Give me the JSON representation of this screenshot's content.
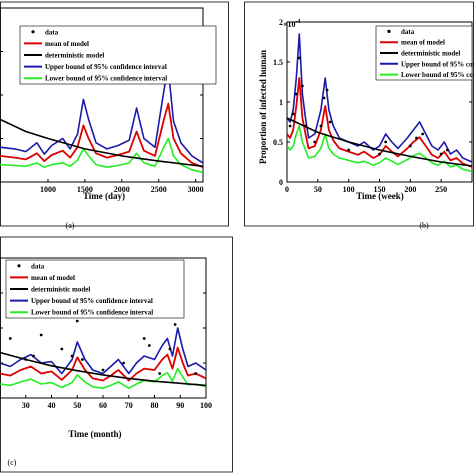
{
  "colors": {
    "data": "#000000",
    "mean": "#dd0000",
    "deterministic": "#000000",
    "upper": "#1a1aaa",
    "lower": "#22ee22"
  },
  "legend_labels": [
    "data",
    "mean of model",
    "deterministic model",
    "Upper bound of 95% confidence interval",
    "Lower bound of 95% confidence interval"
  ],
  "chart_data": [
    {
      "type": "line",
      "panel_label": "(a)",
      "xlabel": "Time (day)",
      "ylabel": "",
      "xlim": [
        350,
        3100
      ],
      "ylim": [
        0,
        2
      ],
      "xticks": [
        1000,
        1500,
        2000,
        2500,
        3000
      ],
      "series": [
        {
          "name": "deterministic model",
          "x": [
            350,
            700,
            1000,
            1500,
            2000,
            2500,
            3000,
            3100
          ],
          "y": [
            0.72,
            0.58,
            0.5,
            0.38,
            0.3,
            0.24,
            0.19,
            0.18
          ]
        },
        {
          "name": "Upper bound of 95% confidence interval",
          "x": [
            350,
            550,
            700,
            850,
            950,
            1050,
            1200,
            1300,
            1400,
            1480,
            1550,
            1650,
            1800,
            1950,
            2100,
            2200,
            2300,
            2450,
            2580,
            2630,
            2700,
            2800,
            2950,
            3100
          ],
          "y": [
            0.4,
            0.38,
            0.35,
            0.45,
            0.32,
            0.42,
            0.5,
            0.38,
            0.55,
            0.95,
            0.72,
            0.45,
            0.38,
            0.42,
            0.48,
            0.85,
            0.5,
            0.4,
            1.1,
            1.3,
            0.7,
            0.45,
            0.3,
            0.22
          ]
        },
        {
          "name": "mean of model",
          "x": [
            350,
            550,
            700,
            850,
            950,
            1050,
            1200,
            1300,
            1400,
            1480,
            1550,
            1650,
            1800,
            1950,
            2100,
            2200,
            2300,
            2450,
            2580,
            2630,
            2700,
            2800,
            2950,
            3100
          ],
          "y": [
            0.3,
            0.28,
            0.26,
            0.33,
            0.24,
            0.31,
            0.36,
            0.28,
            0.4,
            0.65,
            0.5,
            0.33,
            0.28,
            0.31,
            0.35,
            0.58,
            0.36,
            0.3,
            0.75,
            0.9,
            0.5,
            0.33,
            0.22,
            0.17
          ]
        },
        {
          "name": "Lower bound of 95% confidence interval",
          "x": [
            350,
            550,
            700,
            850,
            950,
            1050,
            1200,
            1300,
            1400,
            1480,
            1550,
            1650,
            1800,
            1950,
            2100,
            2200,
            2300,
            2450,
            2580,
            2630,
            2700,
            2800,
            2950,
            3100
          ],
          "y": [
            0.2,
            0.19,
            0.18,
            0.22,
            0.17,
            0.2,
            0.22,
            0.18,
            0.25,
            0.38,
            0.3,
            0.2,
            0.17,
            0.19,
            0.22,
            0.33,
            0.22,
            0.18,
            0.42,
            0.5,
            0.3,
            0.2,
            0.14,
            0.11
          ]
        }
      ]
    },
    {
      "type": "line",
      "panel_label": "(b)",
      "xlabel": "Time (week)",
      "ylabel": "Proportion of infected human",
      "exponent_label": "×10",
      "exponent_power": "-4",
      "xlim": [
        0,
        300
      ],
      "ylim": [
        0,
        2
      ],
      "xticks": [
        0,
        50,
        100,
        150,
        200,
        250
      ],
      "yticks": [
        0,
        0.5,
        1,
        1.5,
        2
      ],
      "yticklabels": [
        "0",
        "0.5",
        "1",
        "1.5",
        "2"
      ],
      "series": [
        {
          "name": "deterministic model",
          "x": [
            0,
            50,
            100,
            150,
            200,
            250,
            300
          ],
          "y": [
            0.8,
            0.62,
            0.5,
            0.4,
            0.32,
            0.25,
            0.2
          ]
        },
        {
          "name": "Upper bound of 95% confidence interval",
          "x": [
            0,
            5,
            10,
            15,
            20,
            25,
            30,
            35,
            45,
            55,
            62,
            68,
            75,
            85,
            100,
            115,
            125,
            140,
            150,
            160,
            170,
            180,
            195,
            205,
            215,
            225,
            235,
            245,
            255,
            265,
            275,
            285,
            300
          ],
          "y": [
            0.8,
            0.75,
            0.9,
            1.3,
            1.85,
            1.1,
            0.8,
            0.55,
            0.6,
            0.9,
            1.3,
            0.9,
            0.7,
            0.55,
            0.5,
            0.45,
            0.5,
            0.4,
            0.45,
            0.6,
            0.5,
            0.42,
            0.55,
            0.65,
            0.75,
            0.6,
            0.45,
            0.4,
            0.5,
            0.35,
            0.4,
            0.3,
            0.25
          ]
        },
        {
          "name": "mean of model",
          "x": [
            0,
            5,
            10,
            15,
            20,
            25,
            30,
            35,
            45,
            55,
            62,
            68,
            75,
            85,
            100,
            115,
            125,
            140,
            150,
            160,
            170,
            180,
            195,
            205,
            215,
            225,
            235,
            245,
            255,
            265,
            275,
            285,
            300
          ],
          "y": [
            0.6,
            0.55,
            0.65,
            0.95,
            1.3,
            0.8,
            0.6,
            0.42,
            0.45,
            0.65,
            0.95,
            0.65,
            0.52,
            0.42,
            0.38,
            0.34,
            0.38,
            0.3,
            0.34,
            0.45,
            0.38,
            0.32,
            0.42,
            0.5,
            0.56,
            0.45,
            0.34,
            0.3,
            0.38,
            0.27,
            0.3,
            0.23,
            0.19
          ]
        },
        {
          "name": "Lower bound of 95% confidence interval",
          "x": [
            0,
            5,
            10,
            15,
            20,
            25,
            30,
            35,
            45,
            55,
            62,
            68,
            75,
            85,
            100,
            115,
            125,
            140,
            150,
            160,
            170,
            180,
            195,
            205,
            215,
            225,
            235,
            245,
            255,
            265,
            275,
            285,
            300
          ],
          "y": [
            0.45,
            0.4,
            0.45,
            0.6,
            0.7,
            0.5,
            0.4,
            0.3,
            0.32,
            0.42,
            0.6,
            0.42,
            0.35,
            0.3,
            0.27,
            0.24,
            0.26,
            0.21,
            0.24,
            0.3,
            0.26,
            0.22,
            0.28,
            0.33,
            0.36,
            0.3,
            0.24,
            0.21,
            0.26,
            0.19,
            0.21,
            0.16,
            0.13
          ]
        },
        {
          "name": "data",
          "x": [
            5,
            10,
            15,
            20,
            25,
            30,
            45,
            55,
            60,
            65,
            70,
            100,
            150,
            160,
            200,
            210,
            220,
            250,
            260
          ],
          "y": [
            0.7,
            0.85,
            1.1,
            1.55,
            1.2,
            0.7,
            0.5,
            0.7,
            1.05,
            1.15,
            0.75,
            0.4,
            0.35,
            0.5,
            0.45,
            0.55,
            0.6,
            0.35,
            0.4
          ]
        }
      ]
    },
    {
      "type": "line",
      "panel_label": "(c)",
      "xlabel": "Time (month)",
      "ylabel": "",
      "xlim": [
        20,
        100
      ],
      "ylim": [
        0,
        2
      ],
      "xticks": [
        20,
        30,
        40,
        50,
        60,
        70,
        80,
        90,
        100
      ],
      "xticklabels": [
        "",
        "30",
        "40",
        "50",
        "60",
        "70",
        "80",
        "90",
        "100"
      ],
      "series": [
        {
          "name": "deterministic model",
          "x": [
            20,
            30,
            40,
            50,
            60,
            70,
            80,
            90,
            100
          ],
          "y": [
            0.65,
            0.55,
            0.46,
            0.39,
            0.33,
            0.28,
            0.24,
            0.21,
            0.18
          ]
        },
        {
          "name": "Upper bound of 95% confidence interval",
          "x": [
            20,
            24,
            28,
            32,
            36,
            40,
            44,
            48,
            50,
            53,
            56,
            60,
            63,
            66,
            70,
            73,
            76,
            80,
            83,
            85,
            87,
            89,
            91,
            93,
            96,
            100
          ],
          "y": [
            0.5,
            0.45,
            0.55,
            0.62,
            0.5,
            0.52,
            0.35,
            0.55,
            0.8,
            0.55,
            0.4,
            0.35,
            0.45,
            0.55,
            0.35,
            0.5,
            0.6,
            0.55,
            0.75,
            0.85,
            0.6,
            1.0,
            0.7,
            0.45,
            0.5,
            0.4
          ]
        },
        {
          "name": "mean of model",
          "x": [
            20,
            24,
            28,
            32,
            36,
            40,
            44,
            48,
            50,
            53,
            56,
            60,
            63,
            66,
            70,
            73,
            76,
            80,
            83,
            85,
            87,
            89,
            91,
            93,
            96,
            100
          ],
          "y": [
            0.35,
            0.32,
            0.4,
            0.45,
            0.35,
            0.38,
            0.26,
            0.4,
            0.58,
            0.4,
            0.28,
            0.25,
            0.32,
            0.4,
            0.25,
            0.35,
            0.42,
            0.4,
            0.55,
            0.62,
            0.42,
            0.72,
            0.5,
            0.32,
            0.35,
            0.28
          ]
        },
        {
          "name": "Lower bound of 95% confidence interval",
          "x": [
            20,
            24,
            28,
            32,
            36,
            40,
            44,
            48,
            50,
            53,
            56,
            60,
            63,
            66,
            70,
            73,
            76,
            80,
            83,
            85,
            87,
            89,
            91,
            93,
            96,
            100
          ],
          "y": [
            0.2,
            0.18,
            0.23,
            0.27,
            0.2,
            0.22,
            0.15,
            0.22,
            0.33,
            0.23,
            0.16,
            0.14,
            0.18,
            0.23,
            0.14,
            0.2,
            0.25,
            0.23,
            0.32,
            0.36,
            0.24,
            0.42,
            0.3,
            0.19,
            0.2,
            0.16
          ]
        },
        {
          "name": "data",
          "x": [
            24,
            30,
            33,
            36,
            44,
            48,
            50,
            52,
            60,
            68,
            76,
            78,
            82,
            86,
            88,
            96
          ],
          "y": [
            0.85,
            0.55,
            0.6,
            0.9,
            0.7,
            0.6,
            1.1,
            0.55,
            0.4,
            0.5,
            0.85,
            0.75,
            0.35,
            0.7,
            1.05,
            0.35
          ]
        }
      ]
    }
  ]
}
